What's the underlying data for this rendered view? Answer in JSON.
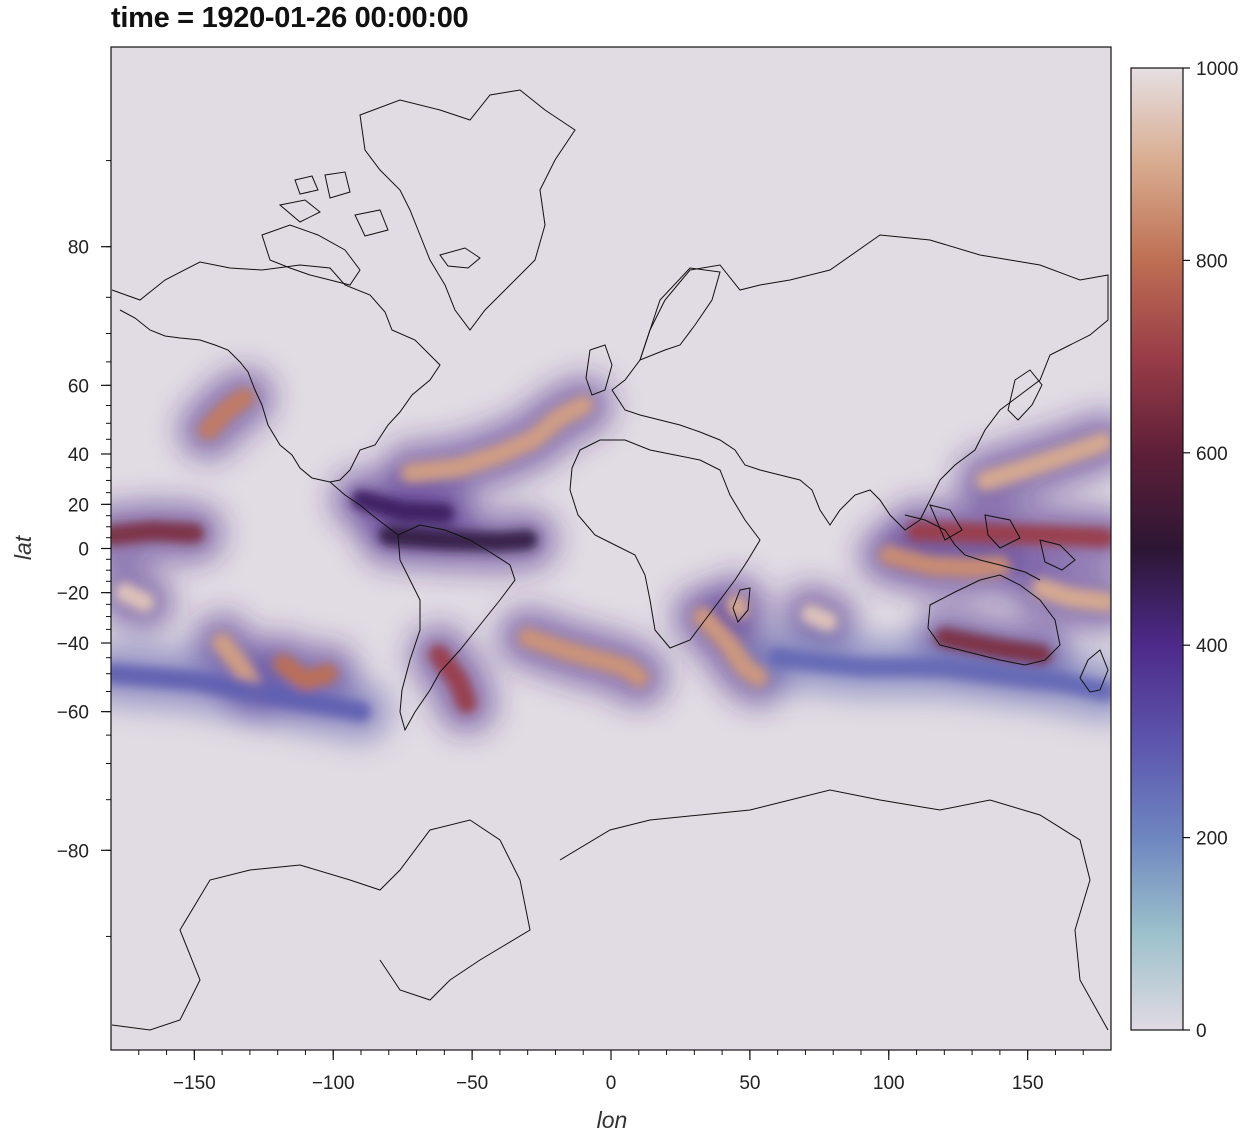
{
  "title": "time = 1920-01-26 00:00:00",
  "map": {
    "projection": "mercator",
    "variable_range": [
      0,
      1000
    ],
    "x_axis": {
      "label": "lon",
      "range": [
        -180,
        180
      ],
      "ticks": [
        {
          "value": -150,
          "label": "−150"
        },
        {
          "value": -100,
          "label": "−100"
        },
        {
          "value": -50,
          "label": "−50"
        },
        {
          "value": 0,
          "label": "0"
        },
        {
          "value": 50,
          "label": "50"
        },
        {
          "value": 100,
          "label": "100"
        },
        {
          "value": 150,
          "label": "150"
        }
      ]
    },
    "y_axis": {
      "label": "lat",
      "range": [
        -88,
        88
      ],
      "ticks": [
        {
          "value": 80,
          "label": "80"
        },
        {
          "value": 60,
          "label": "60"
        },
        {
          "value": 40,
          "label": "40"
        },
        {
          "value": 20,
          "label": "20"
        },
        {
          "value": 0,
          "label": "0"
        },
        {
          "value": -20,
          "label": "−20"
        },
        {
          "value": -40,
          "label": "−40"
        },
        {
          "value": -60,
          "label": "−60"
        },
        {
          "value": -80,
          "label": "−80"
        }
      ]
    },
    "colorbar": {
      "min": 0,
      "max": 1000,
      "ticks": [
        {
          "value": 0,
          "label": "0"
        },
        {
          "value": 200,
          "label": "200"
        },
        {
          "value": 400,
          "label": "400"
        },
        {
          "value": 600,
          "label": "600"
        },
        {
          "value": 800,
          "label": "800"
        },
        {
          "value": 1000,
          "label": "1000"
        }
      ],
      "stops": [
        {
          "value": 0,
          "color": "#e0dae3"
        },
        {
          "value": 100,
          "color": "#9cc1cb"
        },
        {
          "value": 200,
          "color": "#6e86c0"
        },
        {
          "value": 300,
          "color": "#5d55ad"
        },
        {
          "value": 400,
          "color": "#4d2a8a"
        },
        {
          "value": 500,
          "color": "#2c1634"
        },
        {
          "value": 600,
          "color": "#5e1f38"
        },
        {
          "value": 700,
          "color": "#9a3d48"
        },
        {
          "value": 800,
          "color": "#be6f53"
        },
        {
          "value": 900,
          "color": "#d8ab8e"
        },
        {
          "value": 1000,
          "color": "#e6dfe3"
        }
      ]
    },
    "features": [
      {
        "name": "jet-north-atlantic",
        "points": [
          [
            -72,
            33
          ],
          [
            -55,
            35
          ],
          [
            -40,
            40
          ],
          [
            -28,
            45
          ],
          [
            -18,
            52
          ],
          [
            -10,
            55
          ]
        ],
        "value": 880
      },
      {
        "name": "jet-north-pacific-east",
        "points": [
          [
            -145,
            48
          ],
          [
            -138,
            54
          ],
          [
            -132,
            57
          ]
        ],
        "value": 820
      },
      {
        "name": "jet-north-pacific-west",
        "points": [
          [
            135,
            30
          ],
          [
            150,
            35
          ],
          [
            165,
            40
          ],
          [
            177,
            44
          ]
        ],
        "value": 900
      },
      {
        "name": "band-itcz-pacific-east",
        "points": [
          [
            -180,
            6
          ],
          [
            -165,
            8
          ],
          [
            -150,
            7
          ]
        ],
        "value": 650
      },
      {
        "name": "band-itcz-atlantic",
        "points": [
          [
            -80,
            6
          ],
          [
            -60,
            4
          ],
          [
            -40,
            3
          ],
          [
            -30,
            4
          ]
        ],
        "value": 480
      },
      {
        "name": "band-caribbean",
        "points": [
          [
            -90,
            22
          ],
          [
            -75,
            17
          ],
          [
            -60,
            16
          ]
        ],
        "value": 450
      },
      {
        "name": "storm-south-pacific-west",
        "points": [
          [
            -175,
            -20
          ],
          [
            -168,
            -24
          ]
        ],
        "value": 950
      },
      {
        "name": "storm-south-pacific-central",
        "points": [
          [
            -140,
            -40
          ],
          [
            -133,
            -48
          ],
          [
            -128,
            -55
          ]
        ],
        "value": 880
      },
      {
        "name": "storm-south-pacific-east",
        "points": [
          [
            -118,
            -47
          ],
          [
            -110,
            -52
          ],
          [
            -102,
            -50
          ]
        ],
        "value": 800
      },
      {
        "name": "storm-south-america",
        "points": [
          [
            -62,
            -44
          ],
          [
            -55,
            -52
          ],
          [
            -52,
            -58
          ]
        ],
        "value": 700
      },
      {
        "name": "storm-south-atlantic",
        "points": [
          [
            -30,
            -38
          ],
          [
            -15,
            -43
          ],
          [
            5,
            -48
          ],
          [
            10,
            -51
          ]
        ],
        "value": 860
      },
      {
        "name": "storm-southwest-indian",
        "points": [
          [
            33,
            -30
          ],
          [
            42,
            -40
          ],
          [
            48,
            -48
          ],
          [
            53,
            -51
          ]
        ],
        "value": 870
      },
      {
        "name": "storm-madagascar-east",
        "points": [
          [
            45,
            -25
          ],
          [
            46,
            -27
          ]
        ],
        "value": 900
      },
      {
        "name": "storm-indian-central",
        "points": [
          [
            72,
            -29
          ],
          [
            78,
            -32
          ]
        ],
        "value": 950
      },
      {
        "name": "band-maritime-continent",
        "points": [
          [
            100,
            -3
          ],
          [
            115,
            -8
          ],
          [
            130,
            -9
          ],
          [
            140,
            -8
          ]
        ],
        "value": 850
      },
      {
        "name": "band-west-pacific-equatorial",
        "points": [
          [
            110,
            8
          ],
          [
            135,
            7
          ],
          [
            160,
            6
          ],
          [
            178,
            5
          ]
        ],
        "value": 700
      },
      {
        "name": "storm-coral-sea",
        "points": [
          [
            155,
            -18
          ],
          [
            165,
            -22
          ],
          [
            178,
            -24
          ]
        ],
        "value": 900
      },
      {
        "name": "storm-south-australia",
        "points": [
          [
            120,
            -38
          ],
          [
            140,
            -42
          ],
          [
            155,
            -44
          ]
        ],
        "value": 650
      },
      {
        "name": "band-south-indian",
        "points": [
          [
            60,
            -45
          ],
          [
            90,
            -48
          ],
          [
            120,
            -48
          ],
          [
            160,
            -52
          ],
          [
            178,
            -55
          ]
        ],
        "value": 260
      },
      {
        "name": "band-southern-ocean-west",
        "points": [
          [
            -180,
            -50
          ],
          [
            -150,
            -52
          ],
          [
            -120,
            -56
          ],
          [
            -90,
            -60
          ]
        ],
        "value": 280
      }
    ]
  }
}
